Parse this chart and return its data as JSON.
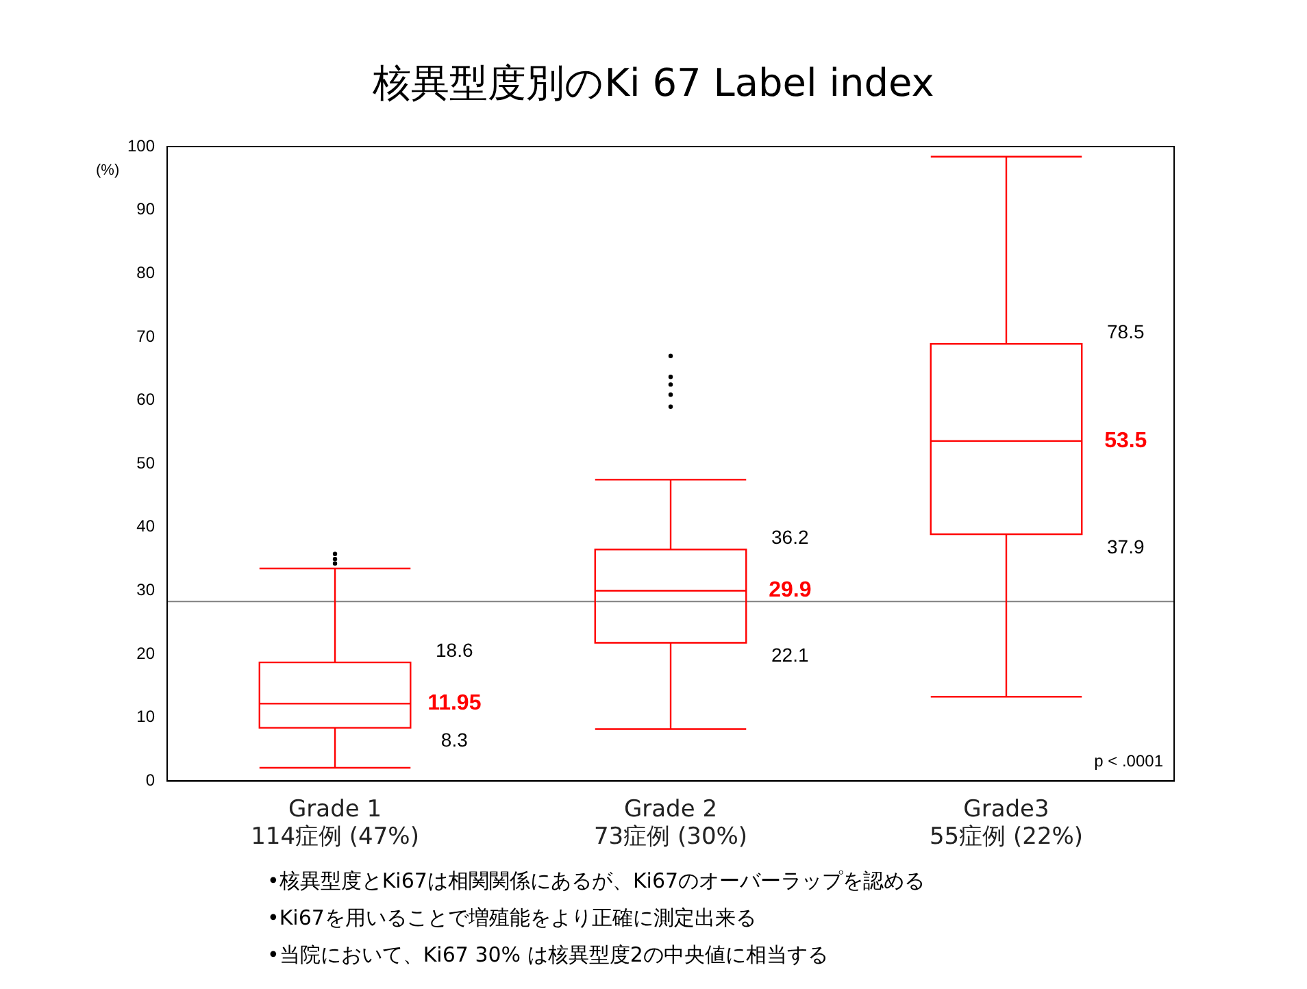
{
  "chart_data": {
    "type": "box",
    "title": "核異型度別のKi 67 Label index",
    "ylabel": "(%)",
    "categories": [
      "Grade 1\n114症例 (47%)",
      "Grade 2\n73症例 (30%)",
      "Grade3\n55症例 (22%)"
    ],
    "series": [
      {
        "color": "#ff0000",
        "boxes": [
          {
            "low": 2.1,
            "q1": 8.4,
            "median": 12.2,
            "q3": 18.7,
            "high": 33.5,
            "outliers": [
              34.3,
              35.0,
              35.8
            ]
          },
          {
            "low": 8.2,
            "q1": 21.8,
            "median": 30.0,
            "q3": 36.5,
            "high": 47.5,
            "outliers": [
              59.0,
              60.9,
              62.5,
              63.7,
              67.0
            ]
          },
          {
            "low": 13.3,
            "q1": 38.9,
            "median": 53.6,
            "q3": 68.9,
            "high": 98.4
          }
        ]
      }
    ],
    "ylim": [
      0,
      100
    ],
    "yticks": [
      0,
      10,
      20,
      30,
      40,
      50,
      60,
      70,
      80,
      90,
      100
    ],
    "grid": false,
    "legend": false,
    "ref_lines": [
      {
        "axis": "y",
        "value": 28.3,
        "color": "#808080"
      }
    ],
    "annotations": [
      "p < .0001",
      "•核異型度とKi67は相関関係にあるが、Ki67のオーバーラップを認める",
      "•Ki67を用いることで増殖能をより正確に測定出来る",
      "•当院において、Ki67 30% は核異型度2の中央値に相当する",
      "18.6",
      "11.95",
      "8.3",
      "36.2",
      "29.9",
      "22.1",
      "78.5",
      "53.5",
      "37.9"
    ]
  }
}
